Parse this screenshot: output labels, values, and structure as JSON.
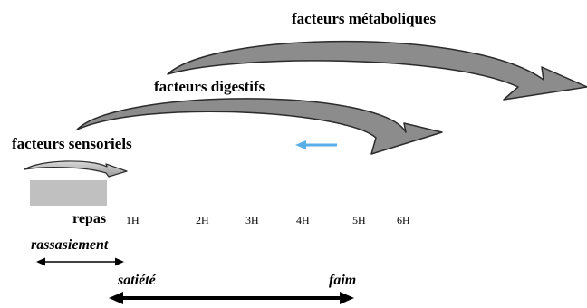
{
  "labels": {
    "metaboliques": "facteurs métaboliques",
    "digestifs": "facteurs digestifs",
    "sensoriels": "facteurs sensoriels",
    "repas": "repas",
    "rassasiement": "rassasiement",
    "satiete": "satiété",
    "faim": "faim"
  },
  "hours": [
    "1H",
    "2H",
    "3H",
    "4H",
    "5H",
    "6H"
  ],
  "colors": {
    "arrow_fill": "#8c8c8c",
    "arrow_stroke": "#2b2b2b",
    "meal_block": "#c0c0c0",
    "small_arrow": "#5aaee8"
  }
}
